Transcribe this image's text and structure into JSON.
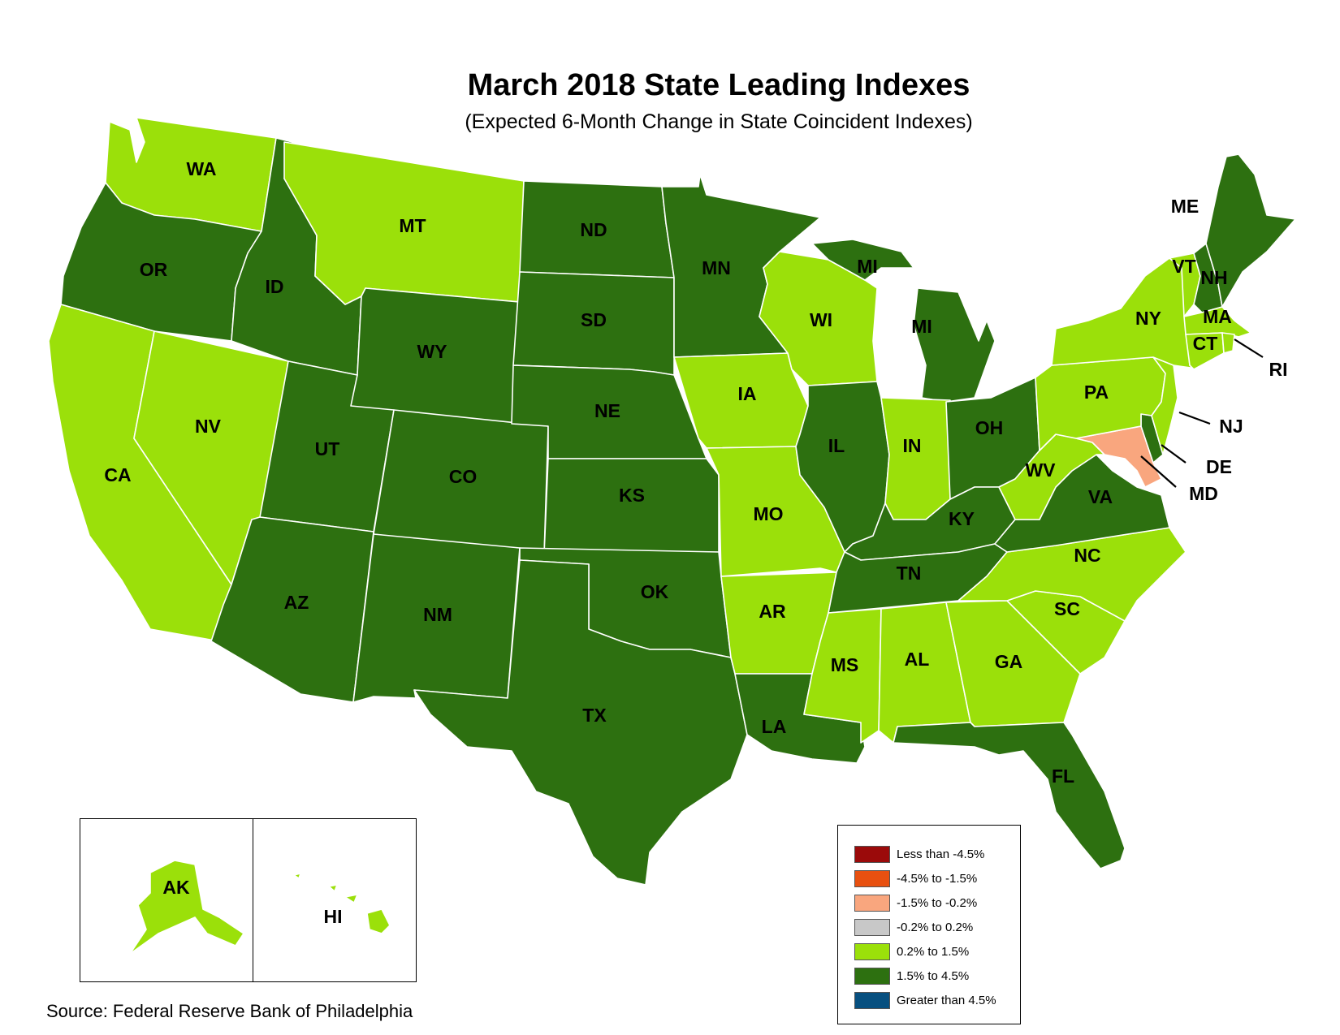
{
  "title": "March 2018 State Leading Indexes",
  "subtitle": "(Expected 6-Month Change in State Coincident Indexes)",
  "source": "Source: Federal Reserve Bank of Philadelphia",
  "colors": {
    "lt_neg45": "#9b0a0a",
    "neg45_neg15": "#e85010",
    "neg15_neg02": "#f9a67e",
    "neg02_02": "#c8c8c8",
    "pos02_15": "#9be00a",
    "pos15_45": "#2d7010",
    "gt_45": "#075080"
  },
  "legend": [
    {
      "label": "Less than -4.5%",
      "color": "#9b0a0a"
    },
    {
      "label": "-4.5% to -1.5%",
      "color": "#e85010"
    },
    {
      "label": "-1.5% to -0.2%",
      "color": "#f9a67e"
    },
    {
      "label": "-0.2% to 0.2%",
      "color": "#c8c8c8"
    },
    {
      "label": "0.2% to 1.5%",
      "color": "#9be00a"
    },
    {
      "label": "1.5% to 4.5%",
      "color": "#2d7010"
    },
    {
      "label": "Greater than 4.5%",
      "color": "#075080"
    }
  ],
  "states": {
    "WA": {
      "label": "WA",
      "category": "0.2% to 1.5%"
    },
    "OR": {
      "label": "OR",
      "category": "1.5% to 4.5%"
    },
    "CA": {
      "label": "CA",
      "category": "0.2% to 1.5%"
    },
    "NV": {
      "label": "NV",
      "category": "0.2% to 1.5%"
    },
    "ID": {
      "label": "ID",
      "category": "1.5% to 4.5%"
    },
    "MT": {
      "label": "MT",
      "category": "0.2% to 1.5%"
    },
    "WY": {
      "label": "WY",
      "category": "1.5% to 4.5%"
    },
    "UT": {
      "label": "UT",
      "category": "1.5% to 4.5%"
    },
    "AZ": {
      "label": "AZ",
      "category": "1.5% to 4.5%"
    },
    "CO": {
      "label": "CO",
      "category": "1.5% to 4.5%"
    },
    "NM": {
      "label": "NM",
      "category": "1.5% to 4.5%"
    },
    "ND": {
      "label": "ND",
      "category": "1.5% to 4.5%"
    },
    "SD": {
      "label": "SD",
      "category": "1.5% to 4.5%"
    },
    "NE": {
      "label": "NE",
      "category": "1.5% to 4.5%"
    },
    "KS": {
      "label": "KS",
      "category": "1.5% to 4.5%"
    },
    "OK": {
      "label": "OK",
      "category": "1.5% to 4.5%"
    },
    "TX": {
      "label": "TX",
      "category": "1.5% to 4.5%"
    },
    "MN": {
      "label": "MN",
      "category": "1.5% to 4.5%"
    },
    "IA": {
      "label": "IA",
      "category": "0.2% to 1.5%"
    },
    "MO": {
      "label": "MO",
      "category": "0.2% to 1.5%"
    },
    "AR": {
      "label": "AR",
      "category": "0.2% to 1.5%"
    },
    "LA": {
      "label": "LA",
      "category": "1.5% to 4.5%"
    },
    "WI": {
      "label": "WI",
      "category": "0.2% to 1.5%"
    },
    "MI": {
      "label": "MI",
      "category": "1.5% to 4.5%"
    },
    "IL": {
      "label": "IL",
      "category": "1.5% to 4.5%"
    },
    "IN": {
      "label": "IN",
      "category": "0.2% to 1.5%"
    },
    "OH": {
      "label": "OH",
      "category": "1.5% to 4.5%"
    },
    "KY": {
      "label": "KY",
      "category": "1.5% to 4.5%"
    },
    "TN": {
      "label": "TN",
      "category": "1.5% to 4.5%"
    },
    "MS": {
      "label": "MS",
      "category": "0.2% to 1.5%"
    },
    "AL": {
      "label": "AL",
      "category": "0.2% to 1.5%"
    },
    "GA": {
      "label": "GA",
      "category": "0.2% to 1.5%"
    },
    "FL": {
      "label": "FL",
      "category": "1.5% to 4.5%"
    },
    "SC": {
      "label": "SC",
      "category": "0.2% to 1.5%"
    },
    "NC": {
      "label": "NC",
      "category": "0.2% to 1.5%"
    },
    "VA": {
      "label": "VA",
      "category": "1.5% to 4.5%"
    },
    "WV": {
      "label": "WV",
      "category": "0.2% to 1.5%"
    },
    "PA": {
      "label": "PA",
      "category": "0.2% to 1.5%"
    },
    "NY": {
      "label": "NY",
      "category": "0.2% to 1.5%"
    },
    "VT": {
      "label": "VT",
      "category": "0.2% to 1.5%"
    },
    "NH": {
      "label": "NH",
      "category": "1.5% to 4.5%"
    },
    "ME": {
      "label": "ME",
      "category": "1.5% to 4.5%"
    },
    "MA": {
      "label": "MA",
      "category": "0.2% to 1.5%"
    },
    "CT": {
      "label": "CT",
      "category": "0.2% to 1.5%"
    },
    "RI": {
      "label": "RI",
      "category": "0.2% to 1.5%"
    },
    "NJ": {
      "label": "NJ",
      "category": "0.2% to 1.5%"
    },
    "DE": {
      "label": "DE",
      "category": "1.5% to 4.5%"
    },
    "MD": {
      "label": "MD",
      "category": "-1.5% to -0.2%"
    },
    "AK": {
      "label": "AK",
      "category": "0.2% to 1.5%"
    },
    "HI": {
      "label": "HI",
      "category": "0.2% to 1.5%"
    }
  }
}
